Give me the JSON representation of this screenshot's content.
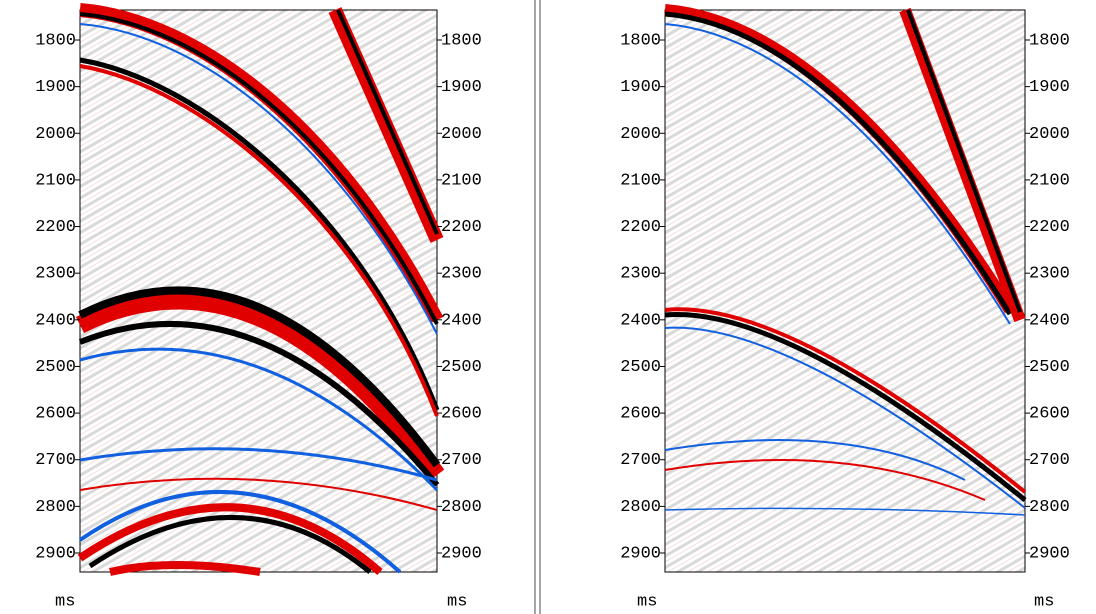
{
  "time_axis": {
    "ticks": [
      1800,
      1900,
      2000,
      2100,
      2200,
      2300,
      2400,
      2500,
      2600,
      2700,
      2800,
      2900
    ],
    "unit": "ms"
  }
}
